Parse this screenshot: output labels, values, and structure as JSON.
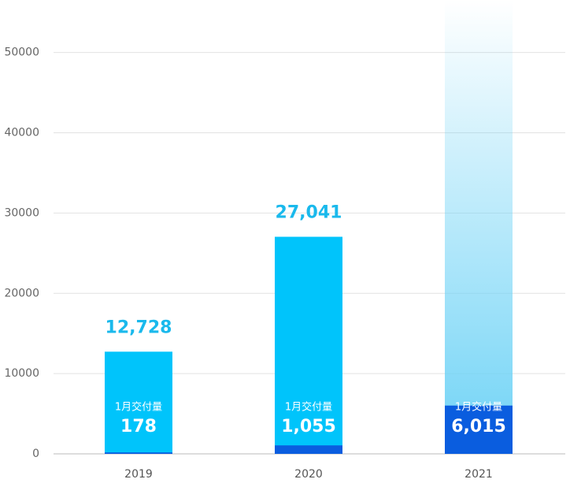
{
  "chart_data": {
    "type": "bar",
    "categories": [
      "2019",
      "2020",
      "2021"
    ],
    "series": [
      {
        "color": "#00c4fb",
        "values": [
          12728,
          27041,
          null
        ],
        "value_labels": [
          "12,728",
          "27,041",
          null
        ]
      },
      {
        "name": "1月交付量",
        "color": "#0a5ddf",
        "values": [
          178,
          1055,
          6015
        ],
        "value_labels": [
          "178",
          "1,055",
          "6,015"
        ]
      }
    ],
    "ylim": [
      0,
      56000
    ],
    "yticks": [
      0,
      10000,
      20000,
      30000,
      40000,
      50000
    ],
    "grid": true
  }
}
